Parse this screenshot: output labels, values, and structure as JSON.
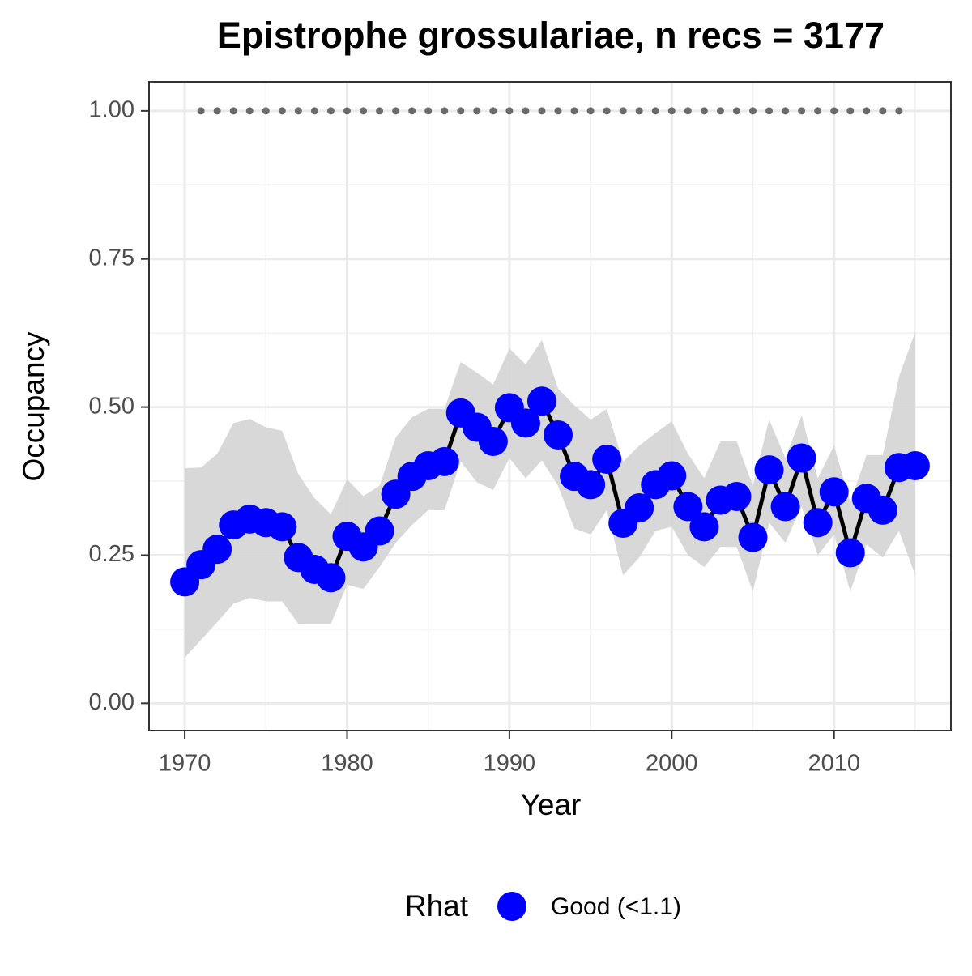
{
  "chart_data": {
    "type": "line",
    "title": "Epistrophe grossulariae, n recs = 3177",
    "x_label": "Year",
    "y_label": "Occupancy",
    "legend_title": "Rhat",
    "x": [
      1970,
      1971,
      1972,
      1973,
      1974,
      1975,
      1976,
      1977,
      1978,
      1979,
      1980,
      1981,
      1982,
      1983,
      1984,
      1985,
      1986,
      1987,
      1988,
      1989,
      1990,
      1991,
      1992,
      1993,
      1994,
      1995,
      1996,
      1997,
      1998,
      1999,
      2000,
      2001,
      2002,
      2003,
      2004,
      2005,
      2006,
      2007,
      2008,
      2009,
      2010,
      2011,
      2012,
      2013,
      2014,
      2015
    ],
    "series": [
      {
        "name": "Good (<1.1)",
        "color": "#0000ff",
        "line_color": "#000000",
        "band_color": "#d4d4d4",
        "values": [
          0.205,
          0.234,
          0.26,
          0.301,
          0.311,
          0.305,
          0.298,
          0.246,
          0.226,
          0.212,
          0.282,
          0.264,
          0.291,
          0.353,
          0.383,
          0.401,
          0.408,
          0.49,
          0.466,
          0.442,
          0.499,
          0.473,
          0.51,
          0.453,
          0.383,
          0.369,
          0.412,
          0.304,
          0.33,
          0.369,
          0.384,
          0.332,
          0.298,
          0.343,
          0.349,
          0.28,
          0.394,
          0.332,
          0.414,
          0.305,
          0.357,
          0.254,
          0.346,
          0.326,
          0.398,
          0.401
        ],
        "lower": [
          0.077,
          0.107,
          0.137,
          0.168,
          0.178,
          0.172,
          0.172,
          0.134,
          0.134,
          0.134,
          0.2,
          0.193,
          0.23,
          0.271,
          0.301,
          0.326,
          0.326,
          0.408,
          0.373,
          0.36,
          0.414,
          0.38,
          0.41,
          0.367,
          0.295,
          0.285,
          0.326,
          0.216,
          0.246,
          0.291,
          0.298,
          0.25,
          0.23,
          0.264,
          0.264,
          0.189,
          0.305,
          0.271,
          0.332,
          0.25,
          0.285,
          0.189,
          0.268,
          0.246,
          0.291,
          0.216
        ],
        "upper": [
          0.397,
          0.398,
          0.421,
          0.473,
          0.48,
          0.466,
          0.46,
          0.387,
          0.346,
          0.319,
          0.378,
          0.35,
          0.367,
          0.449,
          0.483,
          0.497,
          0.497,
          0.576,
          0.558,
          0.538,
          0.599,
          0.572,
          0.613,
          0.531,
          0.503,
          0.479,
          0.497,
          0.408,
          0.435,
          0.456,
          0.476,
          0.421,
          0.38,
          0.442,
          0.442,
          0.367,
          0.479,
          0.414,
          0.486,
          0.38,
          0.435,
          0.339,
          0.419,
          0.419,
          0.551,
          0.627
        ]
      }
    ],
    "reference": {
      "color": "#6b6b6b",
      "x": [
        1971,
        1972,
        1973,
        1974,
        1975,
        1976,
        1977,
        1978,
        1979,
        1980,
        1981,
        1982,
        1983,
        1984,
        1985,
        1986,
        1987,
        1988,
        1989,
        1990,
        1991,
        1992,
        1993,
        1994,
        1995,
        1996,
        1997,
        1998,
        1999,
        2000,
        2001,
        2002,
        2003,
        2004,
        2005,
        2006,
        2007,
        2008,
        2009,
        2010,
        2011,
        2012,
        2013,
        2014
      ],
      "values": [
        1,
        1,
        1,
        1,
        1,
        1,
        1,
        1,
        1,
        1,
        1,
        1,
        1,
        1,
        1,
        1,
        1,
        1,
        1,
        1,
        1,
        1,
        1,
        1,
        1,
        1,
        1,
        1,
        1,
        1,
        1,
        1,
        1,
        1,
        1,
        1,
        1,
        1,
        1,
        1,
        1,
        1,
        1,
        1
      ]
    },
    "xlim": [
      1967.8,
      2017.2
    ],
    "ylim": [
      -0.046,
      1.049
    ],
    "xticks": [
      1970,
      1980,
      1990,
      2000,
      2010
    ],
    "yticks": [
      {
        "value": 0,
        "label": "0.00"
      },
      {
        "value": 0.25,
        "label": "0.25"
      },
      {
        "value": 0.5,
        "label": "0.50"
      },
      {
        "value": 0.75,
        "label": "0.75"
      },
      {
        "value": 1,
        "label": "1.00"
      }
    ],
    "x_minor_ticks": [
      1975,
      1985,
      1995,
      2005,
      2015
    ],
    "y_minor_ticks": [
      0.125,
      0.375,
      0.625,
      0.875
    ],
    "grid": true
  }
}
